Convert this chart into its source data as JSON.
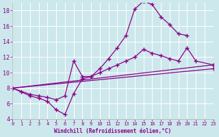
{
  "xlabel": "Windchill (Refroidissement éolien,°C)",
  "xlim": [
    0,
    23
  ],
  "ylim": [
    4,
    19
  ],
  "xticks": [
    0,
    1,
    2,
    3,
    4,
    5,
    6,
    7,
    8,
    9,
    10,
    11,
    12,
    13,
    14,
    15,
    16,
    17,
    18,
    19,
    20,
    21,
    22,
    23
  ],
  "yticks": [
    4,
    6,
    8,
    10,
    12,
    14,
    16,
    18
  ],
  "bg_color": "#cde8ec",
  "grid_color": "#b0d4d8",
  "line_color": "#880088",
  "line1_x": [
    0,
    1,
    2,
    3,
    4,
    5,
    6,
    7,
    8,
    9,
    10,
    11,
    12,
    13,
    14,
    15,
    16,
    17,
    18,
    19,
    20
  ],
  "line1_y": [
    8.0,
    7.5,
    7.0,
    6.7,
    6.3,
    5.2,
    4.6,
    7.3,
    9.2,
    9.5,
    10.5,
    11.8,
    13.2,
    14.8,
    18.2,
    19.2,
    18.8,
    17.2,
    16.2,
    15.0,
    14.8
  ],
  "line2_x": [
    0,
    2,
    3,
    4,
    5,
    6,
    7,
    8,
    9,
    10,
    11,
    12,
    13,
    14,
    15,
    16,
    17,
    18,
    19,
    20,
    21,
    23
  ],
  "line2_y": [
    8.0,
    7.2,
    7.0,
    6.8,
    6.5,
    7.0,
    11.5,
    9.5,
    9.5,
    10.0,
    10.5,
    11.0,
    11.5,
    12.0,
    13.0,
    12.5,
    12.2,
    11.8,
    11.5,
    13.2,
    11.5,
    11.0
  ],
  "line3_x": [
    0,
    23
  ],
  "line3_y": [
    8.0,
    11.0
  ],
  "line4_x": [
    0,
    23
  ],
  "line4_y": [
    8.0,
    10.5
  ],
  "figsize": [
    3.2,
    2.0
  ],
  "dpi": 100
}
